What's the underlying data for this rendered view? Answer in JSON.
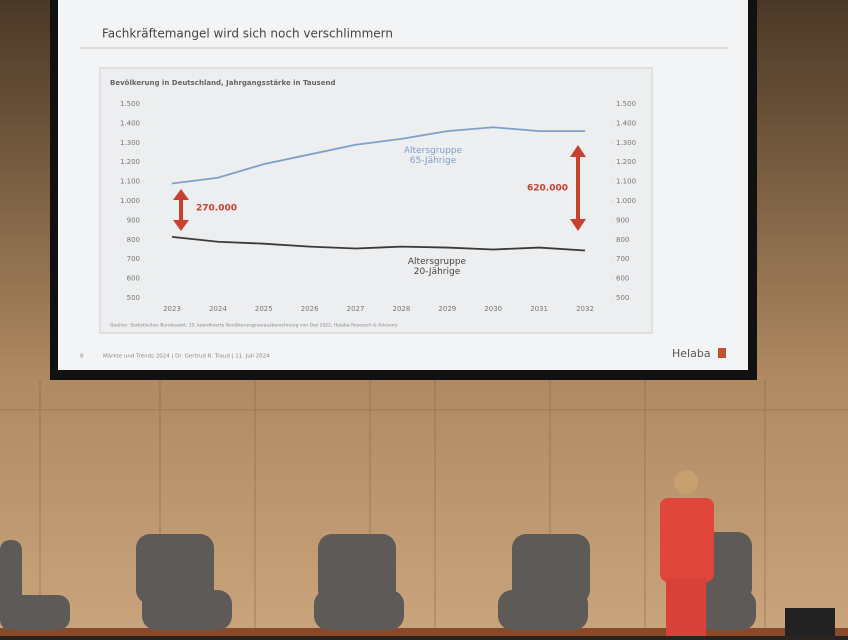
{
  "chart_data": {
    "type": "line",
    "title": "Fachkräftemangel wird sich noch verschlimmern",
    "subtitle": "Bevölkerung in Deutschland, Jahrgangsstärke in Tausend",
    "source": "Quellen: Statistisches Bundesamt, 15. koordinierte Bevölkerungsvorausberechnung von Dez 2022, Helaba Research & Advisory",
    "footer": "Märkte und Trends 2024 | Dr. Gertrud R. Traud | 11. Juli 2024",
    "page_number": "8",
    "brand": "Helaba",
    "x": [
      2023,
      2024,
      2025,
      2026,
      2027,
      2028,
      2029,
      2030,
      2031,
      2032
    ],
    "xlim": [
      2023,
      2032
    ],
    "series": [
      {
        "name": "Altersgruppe 65-Jährige",
        "color": "#7f9fcb",
        "values": [
          1090,
          1120,
          1190,
          1240,
          1290,
          1320,
          1360,
          1380,
          1360,
          1360
        ]
      },
      {
        "name": "Altersgruppe 20-Jährige",
        "color": "#3a3a3a",
        "values": [
          815,
          790,
          780,
          765,
          755,
          765,
          760,
          750,
          760,
          745
        ]
      }
    ],
    "ylim": [
      500,
      1500
    ],
    "yticks": [
      500,
      600,
      700,
      800,
      900,
      {
        "value": 1000,
        "label": "1.000"
      },
      {
        "value": 1100,
        "label": "1.100"
      },
      {
        "value": 1200,
        "label": "1.200"
      },
      {
        "value": 1300,
        "label": "1.300"
      },
      {
        "value": 1400,
        "label": "1.400"
      },
      {
        "value": 1500,
        "label": "1.500"
      }
    ],
    "y2lim": [
      500,
      1500
    ],
    "y2ticks": [
      500,
      600,
      700,
      800,
      900,
      {
        "value": 1000,
        "label": "1.000"
      },
      {
        "value": 1100,
        "label": "1.100"
      },
      {
        "value": 1200,
        "label": "1.200"
      },
      {
        "value": 1300,
        "label": "1.300"
      },
      {
        "value": 1400,
        "label": "1.400"
      },
      {
        "value": 1500,
        "label": "1.500"
      }
    ],
    "annotations": [
      "270.000",
      "620.000"
    ],
    "grid": false
  }
}
